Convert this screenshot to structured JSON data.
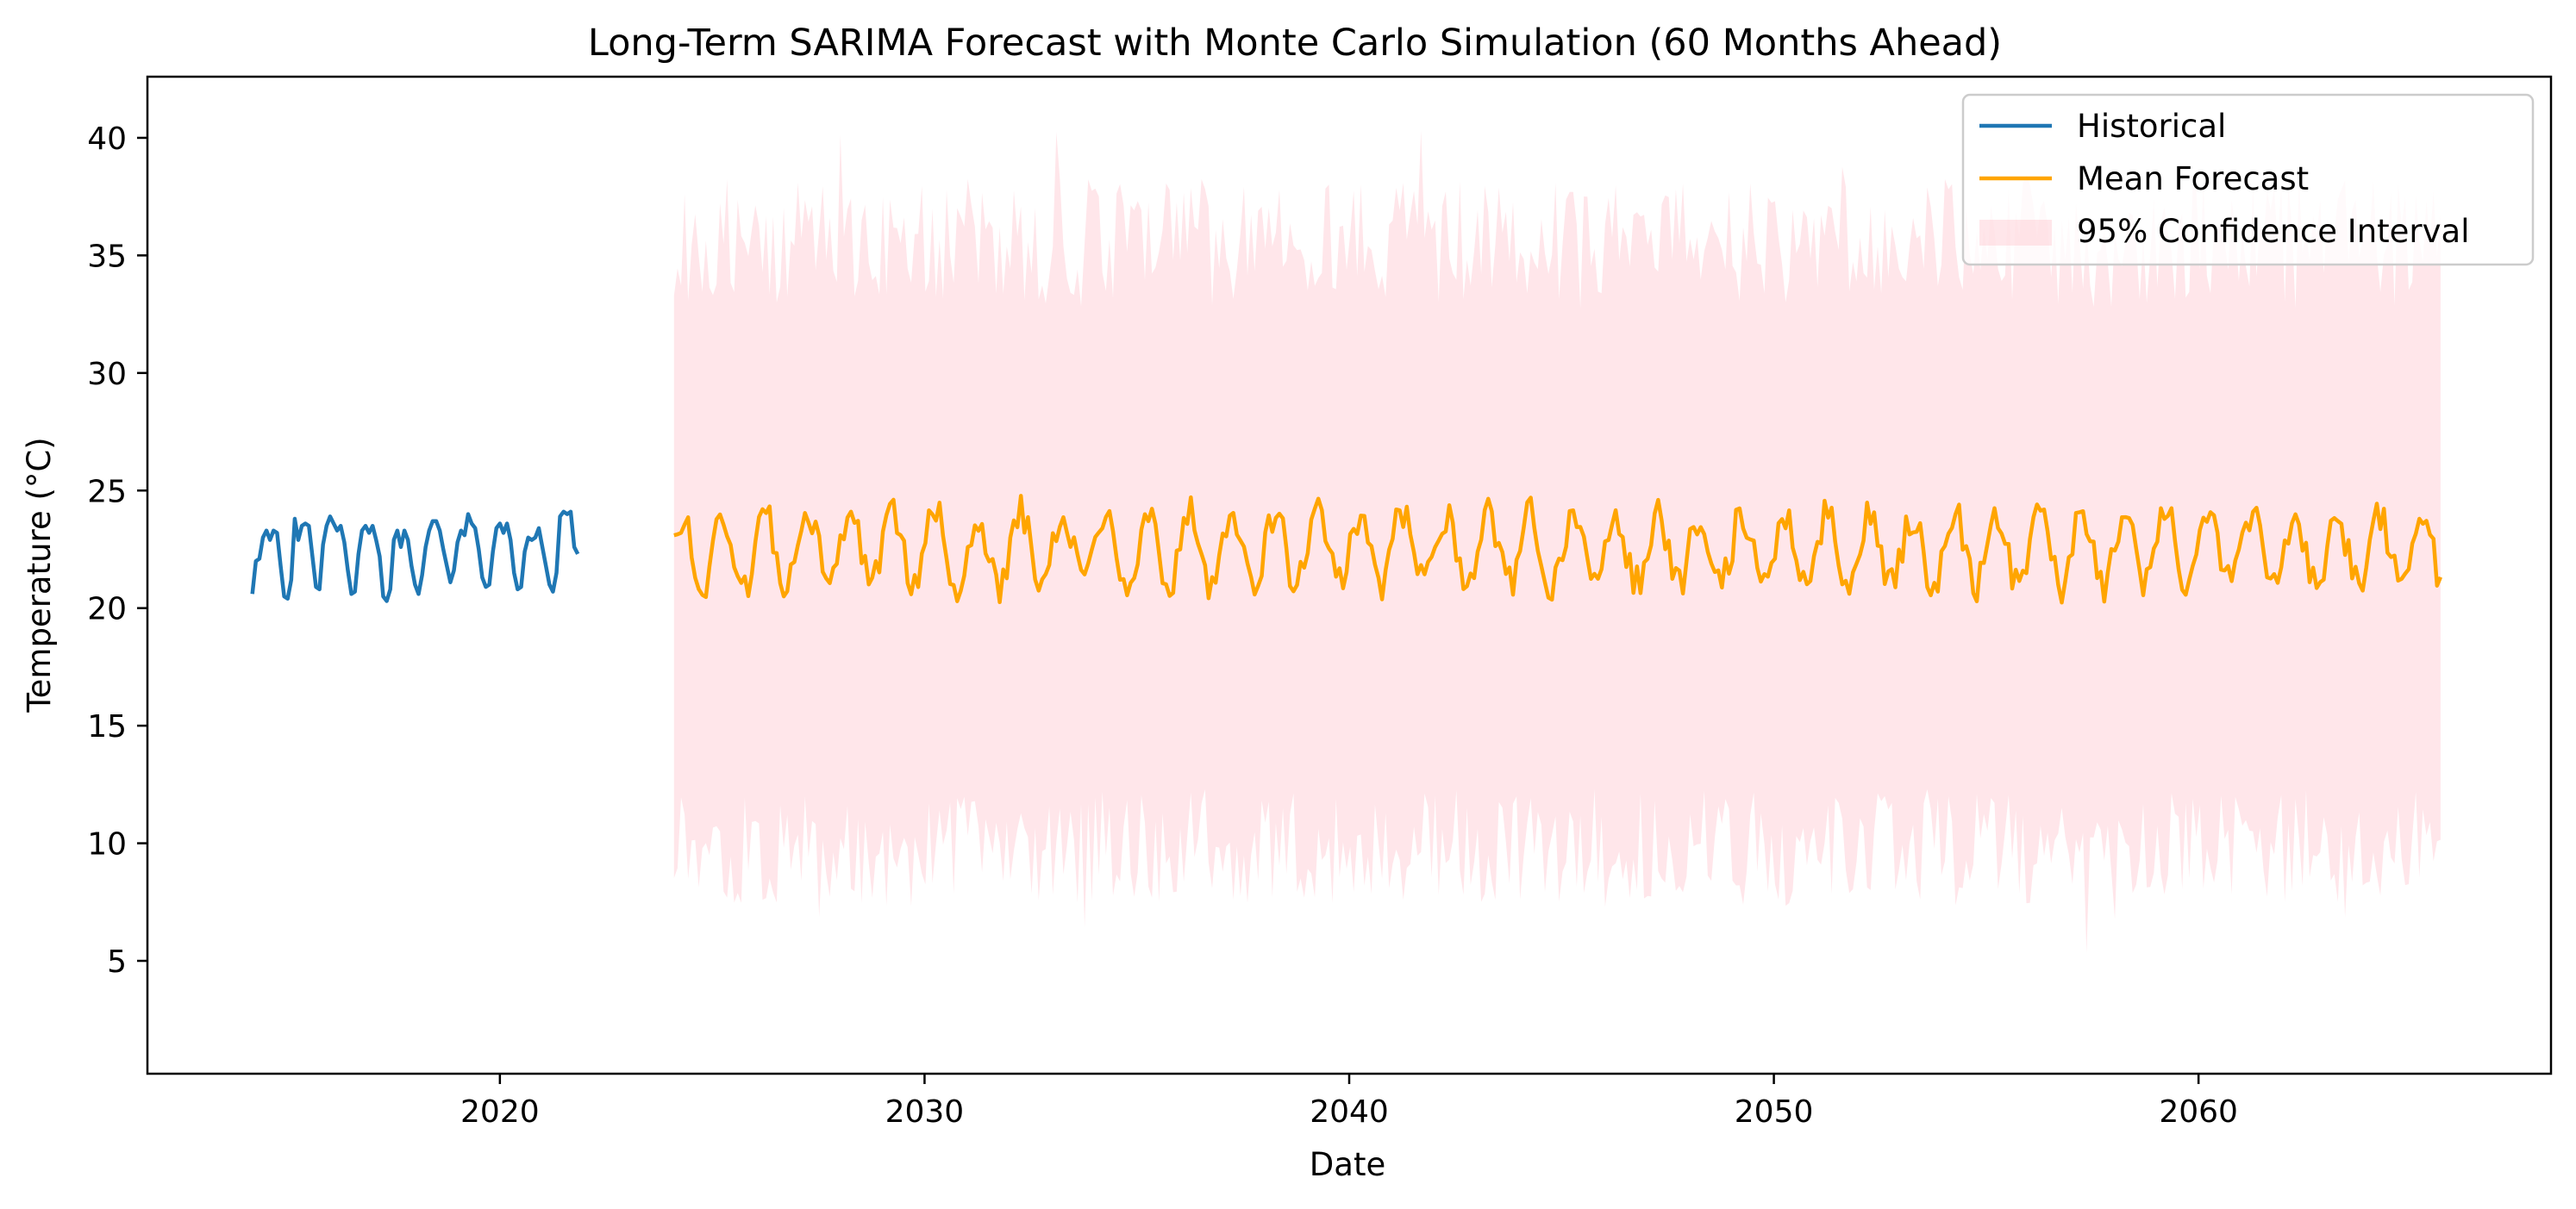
{
  "chart_data": {
    "type": "line",
    "title": "Long-Term SARIMA Forecast with Monte Carlo Simulation (60 Months Ahead)",
    "xlabel": "Date",
    "ylabel": "Temperature (°C)",
    "xlim": [
      2011.7,
      2068.3
    ],
    "ylim": [
      0.2,
      42.6
    ],
    "xticks": [
      2020,
      2030,
      2040,
      2050,
      2060
    ],
    "yticks": [
      5,
      10,
      15,
      20,
      25,
      30,
      35,
      40
    ],
    "grid": false,
    "legend_position": "upper right",
    "colors": {
      "historical": "#1f77b4",
      "forecast": "#ffa500",
      "ci_fill": "#ffc0cb"
    },
    "legend": [
      "Historical",
      "Mean Forecast",
      "95% Confidence Interval"
    ],
    "historical": {
      "name": "Historical",
      "start_year": 2014.17,
      "step_years": 0.0833,
      "values": [
        20.6,
        22.0,
        22.1,
        23.0,
        23.3,
        22.9,
        23.3,
        23.2,
        21.8,
        20.5,
        20.4,
        21.2,
        23.8,
        22.9,
        23.5,
        23.6,
        23.5,
        22.2,
        20.9,
        20.8,
        22.7,
        23.5,
        23.9,
        23.6,
        23.3,
        23.5,
        22.8,
        21.6,
        20.6,
        20.7,
        22.3,
        23.3,
        23.5,
        23.2,
        23.5,
        22.9,
        22.2,
        20.5,
        20.3,
        20.8,
        22.9,
        23.3,
        22.6,
        23.3,
        22.9,
        21.8,
        21.0,
        20.6,
        21.4,
        22.6,
        23.3,
        23.7,
        23.7,
        23.3,
        22.5,
        21.8,
        21.1,
        21.6,
        22.8,
        23.3,
        23.1,
        24.0,
        23.6,
        23.4,
        22.5,
        21.3,
        20.9,
        21.0,
        22.4,
        23.4,
        23.6,
        23.2,
        23.6,
        22.9,
        21.5,
        20.8,
        20.9,
        22.4,
        23.0,
        22.9,
        23.0,
        23.4,
        22.6,
        21.8,
        21.0,
        20.7,
        21.5,
        23.9,
        24.1,
        24.0,
        24.1,
        22.6,
        22.3
      ]
    },
    "forecast": {
      "name": "Mean Forecast",
      "start_year": 2024.1,
      "end_year": 2065.7,
      "points": 500,
      "mean": 22.5,
      "amplitude": 1.5,
      "period_years": 1,
      "noise": 1.0,
      "min": 19.2,
      "max": 25.5
    },
    "confidence_interval": {
      "name": "95% Confidence Interval",
      "upper_mean": 35.5,
      "upper_range": [
        32.0,
        40.3
      ],
      "lower_mean": 9.8,
      "lower_range": [
        2.1,
        14.5
      ]
    }
  }
}
